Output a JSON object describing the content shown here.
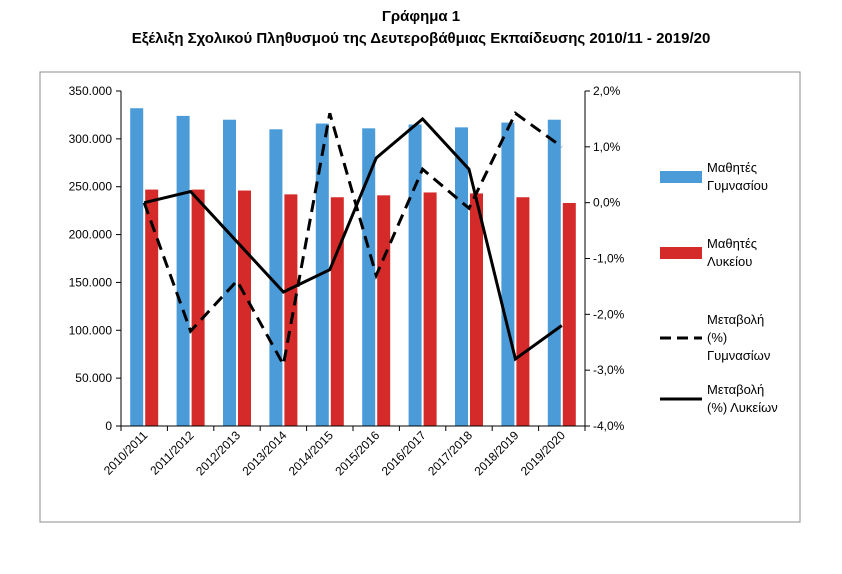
{
  "title": "Γράφημα 1",
  "subtitle": "Εξέλιξη Σχολικού Πληθυσμού της Δευτεροβάθμιας Εκπαίδευσης 2010/11 - 2019/20",
  "chart_data": {
    "type": "bar",
    "categories": [
      "2010/2011",
      "2011/2012",
      "2012/2013",
      "2013/2014",
      "2014/2015",
      "2015/2016",
      "2016/2017",
      "2017/2018",
      "2018/2019",
      "2019/2020"
    ],
    "y_left": {
      "ticks": [
        "0",
        "50.000",
        "100.000",
        "150.000",
        "200.000",
        "250.000",
        "300.000",
        "350.000"
      ],
      "ylim": [
        0,
        350000
      ]
    },
    "y_right": {
      "ticks": [
        "-4,0%",
        "-3,0%",
        "-2,0%",
        "-1,0%",
        "0,0%",
        "1,0%",
        "2,0%"
      ],
      "ylim": [
        -4.0,
        2.0
      ]
    },
    "series": [
      {
        "name": "Μαθητές Γυμνασίου",
        "type": "bar",
        "axis": "left",
        "color": "#4a9bd8",
        "values": [
          332000,
          324000,
          320000,
          310000,
          316000,
          311000,
          315000,
          312000,
          317000,
          320000
        ]
      },
      {
        "name": "Μαθητές Λυκείου",
        "type": "bar",
        "axis": "left",
        "color": "#d42a2a",
        "values": [
          247000,
          247000,
          246000,
          242000,
          239000,
          241000,
          244000,
          243000,
          239000,
          233000
        ]
      },
      {
        "name": "Μεταβολή (%) Γυμνασίων",
        "type": "line",
        "style": "dashed",
        "axis": "right",
        "color": "#000000",
        "values": [
          0.0,
          -2.3,
          -1.4,
          -2.9,
          1.6,
          -1.3,
          0.6,
          -0.1,
          1.6,
          1.0
        ]
      },
      {
        "name": "Μεταβολή (%) Λυκείων",
        "type": "line",
        "style": "solid",
        "axis": "right",
        "color": "#000000",
        "values": [
          0.0,
          0.2,
          -0.7,
          -1.6,
          -1.2,
          0.8,
          1.5,
          0.6,
          -2.8,
          -2.2
        ]
      }
    ],
    "legend_lines": [
      [
        "Μαθητές",
        "Γυμνασίου"
      ],
      [
        "Μαθητές",
        "Λυκείου"
      ],
      [
        "Μεταβολή",
        "(%)",
        "Γυμνασίων"
      ],
      [
        "Μεταβολή",
        "(%) Λυκείων"
      ]
    ],
    "grid": false,
    "legend_position": "right"
  }
}
